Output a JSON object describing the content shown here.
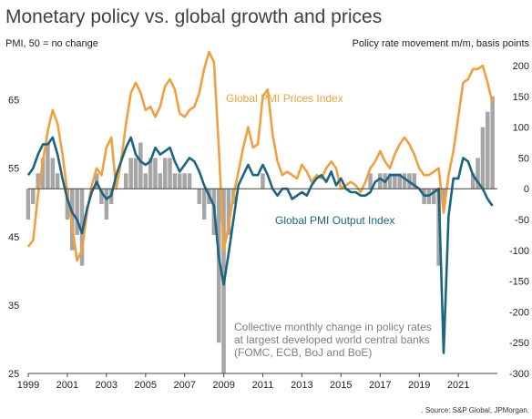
{
  "chart_data": {
    "type": "line",
    "title": "Monetary policy vs. global growth and prices",
    "left_axis_label": "PMI, 50 = no change",
    "right_axis_label": "Policy rate movement m/m, basis points",
    "source": ". Source: S&P Global, JPMorgan.",
    "x_range": [
      1999.0,
      2023.0
    ],
    "left_ylim": [
      25,
      70
    ],
    "right_ylim": [
      -300,
      200
    ],
    "left_ticks": [
      "25",
      "35",
      "45",
      "55",
      "65"
    ],
    "left_tick_values": [
      25,
      35,
      45,
      55,
      65
    ],
    "right_ticks": [
      "-300",
      "-250",
      "-200",
      "-150",
      "-100",
      "-50",
      "0",
      "50",
      "100",
      "150",
      "200"
    ],
    "right_tick_values": [
      -300,
      -250,
      -200,
      -150,
      -100,
      -50,
      0,
      50,
      100,
      150,
      200
    ],
    "x_ticks": [
      "1999",
      "2001",
      "2003",
      "2005",
      "2007",
      "2009",
      "2011",
      "2013",
      "2015",
      "2017",
      "2019",
      "2021"
    ],
    "x_tick_values": [
      1999,
      2001,
      2003,
      2005,
      2007,
      2009,
      2011,
      2013,
      2015,
      2017,
      2019,
      2021
    ],
    "annotations": [
      {
        "text": "Global PMI Prices Index",
        "color": "#F0A040"
      },
      {
        "text": "Global PMI Output Index",
        "color": "#1C6480"
      },
      {
        "text": "Collective monthly change in policy rates",
        "color": "#7f7f7f"
      },
      {
        "text": "at largest developed world central banks",
        "color": "#7f7f7f"
      },
      {
        "text": "(FOMC, ECB, BoJ and BoE)",
        "color": "#7f7f7f"
      }
    ],
    "series": [
      {
        "name": "Global PMI Prices Index",
        "axis": "left",
        "color": "#F0A040",
        "x": [
          1999.0,
          1999.25,
          1999.5,
          1999.75,
          2000.0,
          2000.25,
          2000.5,
          2000.75,
          2001.0,
          2001.25,
          2001.5,
          2001.75,
          2002.0,
          2002.25,
          2002.5,
          2002.75,
          2003.0,
          2003.25,
          2003.5,
          2003.75,
          2004.0,
          2004.25,
          2004.5,
          2004.75,
          2005.0,
          2005.25,
          2005.5,
          2005.75,
          2006.0,
          2006.25,
          2006.5,
          2006.75,
          2007.0,
          2007.25,
          2007.5,
          2007.75,
          2008.0,
          2008.25,
          2008.5,
          2008.75,
          2009.0,
          2009.25,
          2009.5,
          2009.75,
          2010.0,
          2010.25,
          2010.5,
          2010.75,
          2011.0,
          2011.25,
          2011.5,
          2011.75,
          2012.0,
          2012.25,
          2012.5,
          2012.75,
          2013.0,
          2013.25,
          2013.5,
          2013.75,
          2014.0,
          2014.25,
          2014.5,
          2014.75,
          2015.0,
          2015.25,
          2015.5,
          2015.75,
          2016.0,
          2016.25,
          2016.5,
          2016.75,
          2017.0,
          2017.25,
          2017.5,
          2017.75,
          2018.0,
          2018.25,
          2018.5,
          2018.75,
          2019.0,
          2019.25,
          2019.5,
          2019.75,
          2020.0,
          2020.25,
          2020.5,
          2020.75,
          2021.0,
          2021.25,
          2021.5,
          2021.75,
          2022.0,
          2022.25,
          2022.5,
          2022.75
        ],
        "y": [
          43.5,
          44.5,
          51.0,
          56.0,
          60.5,
          63.5,
          61.5,
          57.0,
          51.5,
          46.5,
          41.5,
          43.0,
          48.5,
          52.5,
          55.0,
          54.0,
          58.0,
          59.5,
          52.0,
          56.0,
          61.5,
          66.0,
          67.5,
          66.0,
          63.5,
          64.0,
          62.5,
          64.0,
          67.0,
          68.0,
          66.5,
          63.0,
          62.5,
          63.5,
          64.0,
          66.0,
          69.5,
          72.0,
          70.5,
          58.0,
          43.0,
          46.5,
          51.0,
          54.5,
          58.0,
          61.0,
          58.0,
          58.5,
          65.5,
          66.5,
          60.0,
          56.0,
          54.0,
          54.5,
          54.0,
          53.5,
          55.5,
          54.5,
          53.0,
          54.0,
          53.5,
          55.0,
          56.0,
          55.0,
          52.0,
          52.5,
          53.0,
          52.5,
          51.5,
          53.0,
          55.0,
          56.0,
          57.5,
          56.0,
          55.0,
          57.0,
          58.5,
          59.5,
          58.5,
          57.0,
          55.0,
          54.0,
          54.0,
          54.5,
          55.0,
          48.5,
          54.0,
          57.5,
          62.5,
          67.5,
          68.0,
          69.5,
          69.5,
          70.0,
          67.5,
          64.5
        ]
      },
      {
        "name": "Global PMI Output Index",
        "axis": "left",
        "color": "#1C6480",
        "x": [
          1999.0,
          1999.25,
          1999.5,
          1999.75,
          2000.0,
          2000.25,
          2000.5,
          2000.75,
          2001.0,
          2001.25,
          2001.5,
          2001.75,
          2002.0,
          2002.25,
          2002.5,
          2002.75,
          2003.0,
          2003.25,
          2003.5,
          2003.75,
          2004.0,
          2004.25,
          2004.5,
          2004.75,
          2005.0,
          2005.25,
          2005.5,
          2005.75,
          2006.0,
          2006.25,
          2006.5,
          2006.75,
          2007.0,
          2007.25,
          2007.5,
          2007.75,
          2008.0,
          2008.25,
          2008.5,
          2008.75,
          2009.0,
          2009.25,
          2009.5,
          2009.75,
          2010.0,
          2010.25,
          2010.5,
          2010.75,
          2011.0,
          2011.25,
          2011.5,
          2011.75,
          2012.0,
          2012.25,
          2012.5,
          2012.75,
          2013.0,
          2013.25,
          2013.5,
          2013.75,
          2014.0,
          2014.25,
          2014.5,
          2014.75,
          2015.0,
          2015.25,
          2015.5,
          2015.75,
          2016.0,
          2016.25,
          2016.5,
          2016.75,
          2017.0,
          2017.25,
          2017.5,
          2017.75,
          2018.0,
          2018.25,
          2018.5,
          2018.75,
          2019.0,
          2019.25,
          2019.5,
          2019.75,
          2020.0,
          2020.25,
          2020.5,
          2020.75,
          2021.0,
          2021.25,
          2021.5,
          2021.75,
          2022.0,
          2022.25,
          2022.5,
          2022.75
        ],
        "y": [
          54.0,
          55.0,
          57.0,
          58.5,
          58.5,
          59.5,
          57.0,
          53.5,
          50.5,
          48.5,
          47.5,
          45.5,
          49.0,
          51.5,
          53.0,
          51.5,
          50.5,
          51.0,
          54.0,
          56.0,
          58.0,
          59.5,
          57.0,
          56.0,
          55.5,
          56.0,
          58.0,
          57.0,
          57.5,
          58.0,
          56.0,
          54.5,
          55.5,
          56.5,
          56.0,
          54.5,
          52.5,
          51.0,
          49.5,
          42.0,
          38.0,
          42.5,
          47.5,
          52.5,
          54.0,
          55.5,
          54.0,
          54.0,
          55.5,
          54.0,
          52.0,
          51.0,
          52.0,
          52.0,
          50.5,
          51.0,
          51.5,
          51.0,
          52.5,
          53.5,
          54.0,
          53.0,
          54.5,
          52.5,
          53.5,
          52.0,
          51.5,
          51.5,
          51.0,
          51.0,
          51.5,
          53.0,
          53.5,
          53.0,
          54.0,
          54.0,
          54.0,
          53.5,
          53.0,
          52.5,
          52.0,
          51.0,
          51.0,
          51.5,
          52.0,
          28.0,
          48.0,
          53.5,
          53.5,
          56.5,
          56.0,
          54.0,
          53.0,
          52.0,
          50.5,
          49.5
        ]
      },
      {
        "name": "Collective monthly change in policy rates",
        "axis": "right",
        "color": "#a6a6a6",
        "x": [
          1999.0,
          1999.25,
          1999.5,
          1999.75,
          2000.0,
          2000.25,
          2000.5,
          2000.75,
          2001.0,
          2001.25,
          2001.5,
          2001.75,
          2002.0,
          2002.25,
          2002.5,
          2002.75,
          2003.0,
          2003.25,
          2003.5,
          2003.75,
          2004.0,
          2004.25,
          2004.5,
          2004.75,
          2005.0,
          2005.25,
          2005.5,
          2005.75,
          2006.0,
          2006.25,
          2006.5,
          2006.75,
          2007.0,
          2007.25,
          2007.5,
          2007.75,
          2008.0,
          2008.25,
          2008.5,
          2008.75,
          2009.0,
          2009.25,
          2009.5,
          2009.75,
          2010.0,
          2010.25,
          2010.5,
          2010.75,
          2011.0,
          2011.25,
          2011.5,
          2011.75,
          2012.0,
          2012.25,
          2012.5,
          2012.75,
          2013.0,
          2013.25,
          2013.5,
          2013.75,
          2014.0,
          2014.25,
          2014.5,
          2014.75,
          2015.0,
          2015.25,
          2015.5,
          2015.75,
          2016.0,
          2016.25,
          2016.5,
          2016.75,
          2017.0,
          2017.25,
          2017.5,
          2017.75,
          2018.0,
          2018.25,
          2018.5,
          2018.75,
          2019.0,
          2019.25,
          2019.5,
          2019.75,
          2020.0,
          2020.25,
          2020.5,
          2020.75,
          2021.0,
          2021.25,
          2021.5,
          2021.75,
          2022.0,
          2022.25,
          2022.5,
          2022.75
        ],
        "y": [
          -50,
          -25,
          25,
          50,
          75,
          50,
          25,
          0,
          -50,
          -100,
          -75,
          -125,
          0,
          0,
          25,
          -25,
          -50,
          -25,
          0,
          0,
          25,
          50,
          50,
          75,
          25,
          50,
          50,
          25,
          50,
          50,
          25,
          25,
          25,
          25,
          0,
          -25,
          -50,
          -25,
          -75,
          -250,
          -300,
          -75,
          -25,
          0,
          0,
          0,
          0,
          0,
          25,
          0,
          0,
          0,
          0,
          0,
          0,
          0,
          0,
          0,
          0,
          0,
          0,
          0,
          0,
          0,
          0,
          0,
          0,
          0,
          0,
          0,
          25,
          0,
          25,
          25,
          25,
          25,
          25,
          25,
          25,
          25,
          0,
          -25,
          -25,
          -25,
          -125,
          -25,
          0,
          0,
          0,
          0,
          0,
          25,
          50,
          100,
          125,
          150
        ]
      }
    ]
  }
}
